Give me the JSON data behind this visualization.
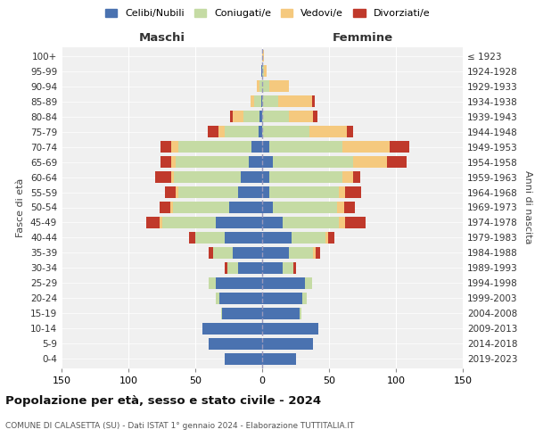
{
  "age_groups": [
    "0-4",
    "5-9",
    "10-14",
    "15-19",
    "20-24",
    "25-29",
    "30-34",
    "35-39",
    "40-44",
    "45-49",
    "50-54",
    "55-59",
    "60-64",
    "65-69",
    "70-74",
    "75-79",
    "80-84",
    "85-89",
    "90-94",
    "95-99",
    "100+"
  ],
  "birth_years": [
    "2019-2023",
    "2014-2018",
    "2009-2013",
    "2004-2008",
    "1999-2003",
    "1994-1998",
    "1989-1993",
    "1984-1988",
    "1979-1983",
    "1974-1978",
    "1969-1973",
    "1964-1968",
    "1959-1963",
    "1954-1958",
    "1949-1953",
    "1944-1948",
    "1939-1943",
    "1934-1938",
    "1929-1933",
    "1924-1928",
    "≤ 1923"
  ],
  "colors": {
    "celibi": "#4a72b0",
    "coniugati": "#c5dba4",
    "vedovi": "#f5c97e",
    "divorziati": "#c0392b"
  },
  "maschi": {
    "celibi": [
      28,
      40,
      45,
      30,
      32,
      35,
      18,
      22,
      28,
      35,
      25,
      18,
      16,
      10,
      8,
      3,
      2,
      1,
      0,
      1,
      0
    ],
    "coniugati": [
      0,
      0,
      0,
      1,
      3,
      5,
      8,
      15,
      22,
      40,
      42,
      45,
      50,
      55,
      55,
      25,
      12,
      5,
      2,
      0,
      0
    ],
    "vedovi": [
      0,
      0,
      0,
      0,
      0,
      0,
      0,
      0,
      0,
      2,
      2,
      2,
      2,
      3,
      5,
      5,
      8,
      3,
      2,
      0,
      0
    ],
    "divorziati": [
      0,
      0,
      0,
      0,
      0,
      0,
      2,
      3,
      5,
      10,
      8,
      8,
      12,
      8,
      8,
      8,
      2,
      0,
      0,
      0,
      0
    ]
  },
  "femmine": {
    "celibi": [
      25,
      38,
      42,
      28,
      30,
      32,
      15,
      20,
      22,
      15,
      8,
      5,
      5,
      8,
      5,
      0,
      0,
      0,
      0,
      0,
      0
    ],
    "coniugati": [
      0,
      0,
      0,
      1,
      3,
      5,
      8,
      18,
      25,
      42,
      48,
      52,
      55,
      60,
      55,
      35,
      20,
      12,
      5,
      1,
      0
    ],
    "vedovi": [
      0,
      0,
      0,
      0,
      0,
      0,
      0,
      2,
      2,
      5,
      5,
      5,
      8,
      25,
      35,
      28,
      18,
      25,
      15,
      2,
      1
    ],
    "divorziati": [
      0,
      0,
      0,
      0,
      0,
      0,
      2,
      3,
      5,
      15,
      8,
      12,
      5,
      15,
      15,
      5,
      3,
      2,
      0,
      0,
      0
    ]
  },
  "title": "Popolazione per età, sesso e stato civile - 2024",
  "subtitle": "COMUNE DI CALASETTA (SU) - Dati ISTAT 1° gennaio 2024 - Elaborazione TUTTITALIA.IT",
  "xlabel_left": "Maschi",
  "xlabel_right": "Femmine",
  "ylabel_left": "Fasce di età",
  "ylabel_right": "Anni di nascita",
  "legend_labels": [
    "Celibi/Nubili",
    "Coniugati/e",
    "Vedovi/e",
    "Divorziati/e"
  ],
  "xlim": 150,
  "background_color": "#ffffff",
  "plot_bg_color": "#f0f0f0",
  "grid_color": "#ffffff"
}
